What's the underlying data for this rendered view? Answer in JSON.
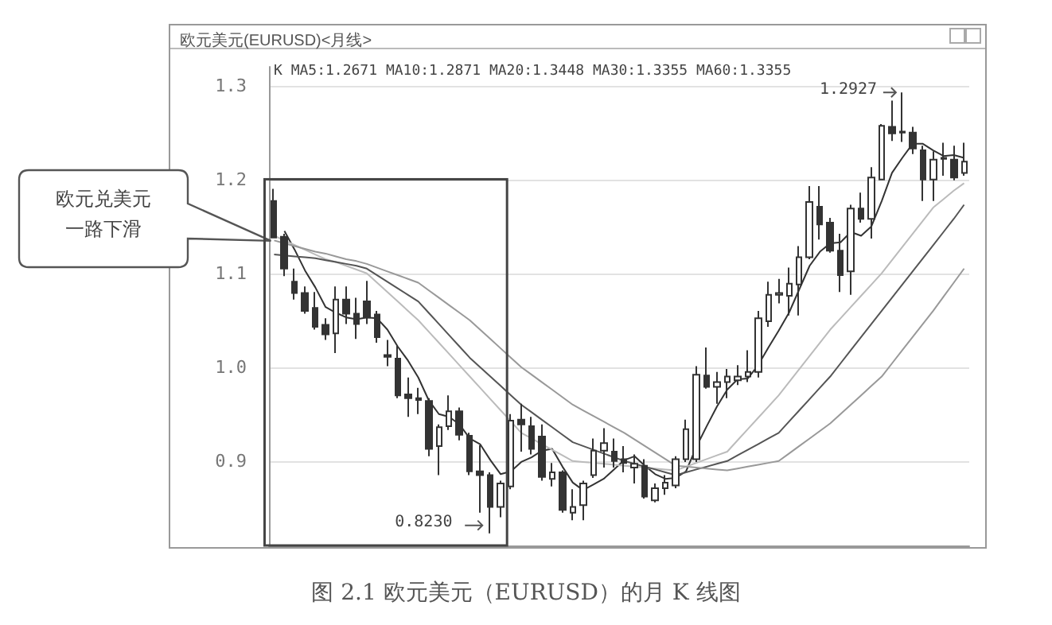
{
  "chart_data": {
    "type": "candlestick",
    "title": "欧元美元(EURUSD)<月线>",
    "categories": [
      null,
      null,
      null,
      null,
      null,
      null,
      null,
      null,
      null,
      null,
      null,
      null,
      null,
      null,
      null,
      null,
      null,
      null,
      null,
      null,
      null,
      null,
      null,
      null,
      null,
      null,
      null,
      null,
      null,
      null,
      null,
      null,
      null,
      null,
      null,
      null,
      null,
      null,
      null,
      null,
      null,
      null,
      null,
      null,
      null,
      null,
      null,
      null,
      null,
      null,
      null,
      null,
      null,
      null,
      null,
      null,
      null,
      null,
      null,
      null,
      null,
      null,
      null,
      null,
      null,
      null,
      null,
      null
    ],
    "color": "#333333",
    "ohlc": [
      [
        1.177,
        1.19,
        1.138,
        1.138
      ],
      [
        1.139,
        1.142,
        1.097,
        1.105
      ],
      [
        1.091,
        1.105,
        1.072,
        1.079
      ],
      [
        1.079,
        1.086,
        1.057,
        1.06
      ],
      [
        1.063,
        1.08,
        1.04,
        1.043
      ],
      [
        1.045,
        1.052,
        1.029,
        1.035
      ],
      [
        1.036,
        1.086,
        1.015,
        1.072
      ],
      [
        1.072,
        1.086,
        1.046,
        1.057
      ],
      [
        1.057,
        1.074,
        1.03,
        1.046
      ],
      [
        1.07,
        1.092,
        1.046,
        1.053
      ],
      [
        1.056,
        1.06,
        1.026,
        1.032
      ],
      [
        1.013,
        1.029,
        1.001,
        1.011
      ],
      [
        1.009,
        1.023,
        0.967,
        0.97
      ],
      [
        0.971,
        0.989,
        0.947,
        0.967
      ],
      [
        0.967,
        0.978,
        0.95,
        0.965
      ],
      [
        0.964,
        0.967,
        0.905,
        0.913
      ],
      [
        0.916,
        0.939,
        0.885,
        0.936
      ],
      [
        0.937,
        0.97,
        0.933,
        0.953
      ],
      [
        0.953,
        0.957,
        0.922,
        0.928
      ],
      [
        0.927,
        0.93,
        0.885,
        0.889
      ],
      [
        0.889,
        0.917,
        0.845,
        0.885
      ],
      [
        0.885,
        0.888,
        0.823,
        0.851
      ],
      [
        0.851,
        0.879,
        0.84,
        0.876
      ],
      [
        0.873,
        0.95,
        0.87,
        0.943
      ],
      [
        0.944,
        0.961,
        0.91,
        0.939
      ],
      [
        0.937,
        0.947,
        0.907,
        0.913
      ],
      [
        0.926,
        0.939,
        0.879,
        0.883
      ],
      [
        0.881,
        0.898,
        0.873,
        0.888
      ],
      [
        0.888,
        0.89,
        0.845,
        0.848
      ],
      [
        0.845,
        0.87,
        0.837,
        0.851
      ],
      [
        0.853,
        0.879,
        0.837,
        0.876
      ],
      [
        0.885,
        0.924,
        0.882,
        0.911
      ],
      [
        0.911,
        0.935,
        0.893,
        0.919
      ],
      [
        0.91,
        0.924,
        0.893,
        0.9
      ],
      [
        0.902,
        0.916,
        0.888,
        0.898
      ],
      [
        0.893,
        0.907,
        0.876,
        0.897
      ],
      [
        0.895,
        0.902,
        0.86,
        0.862
      ],
      [
        0.858,
        0.876,
        0.856,
        0.871
      ],
      [
        0.871,
        0.885,
        0.864,
        0.877
      ],
      [
        0.874,
        0.905,
        0.871,
        0.902
      ],
      [
        0.902,
        0.944,
        0.899,
        0.934
      ],
      [
        0.902,
        1.001,
        0.899,
        0.992
      ],
      [
        0.991,
        1.021,
        0.977,
        0.979
      ],
      [
        0.979,
        0.995,
        0.961,
        0.984
      ],
      [
        0.984,
        0.998,
        0.967,
        0.99
      ],
      [
        0.986,
        1.002,
        0.981,
        0.99
      ],
      [
        0.99,
        1.018,
        0.984,
        0.995
      ],
      [
        0.995,
        1.06,
        0.989,
        1.052
      ],
      [
        1.049,
        1.091,
        1.043,
        1.077
      ],
      [
        1.077,
        1.094,
        1.068,
        1.079
      ],
      [
        1.076,
        1.106,
        1.055,
        1.089
      ],
      [
        1.088,
        1.129,
        1.055,
        1.117
      ],
      [
        1.117,
        1.193,
        1.115,
        1.176
      ],
      [
        1.171,
        1.193,
        1.136,
        1.152
      ],
      [
        1.154,
        1.159,
        1.122,
        1.124
      ],
      [
        1.124,
        1.142,
        1.08,
        1.098
      ],
      [
        1.102,
        1.173,
        1.077,
        1.169
      ],
      [
        1.169,
        1.186,
        1.154,
        1.158
      ],
      [
        1.158,
        1.213,
        1.137,
        1.202
      ],
      [
        1.2,
        1.259,
        1.199,
        1.257
      ],
      [
        1.256,
        1.284,
        1.241,
        1.249
      ],
      [
        1.25,
        1.2927,
        1.24,
        1.251
      ],
      [
        1.25,
        1.256,
        1.227,
        1.233
      ],
      [
        1.231,
        1.236,
        1.177,
        1.2
      ],
      [
        1.2,
        1.23,
        1.177,
        1.221
      ],
      [
        1.223,
        1.239,
        1.204,
        1.222
      ],
      [
        1.221,
        1.236,
        1.199,
        1.202
      ],
      [
        1.207,
        1.239,
        1.204,
        1.219
      ]
    ],
    "series": [
      {
        "type": "line",
        "color": "#333333",
        "values": [
          null,
          1.145,
          1.125,
          1.103,
          1.085,
          1.064,
          1.058,
          1.053,
          1.051,
          1.053,
          1.052,
          1.04,
          1.022,
          1.007,
          0.989,
          0.965,
          0.95,
          0.947,
          0.939,
          0.924,
          0.918,
          0.901,
          0.886,
          0.889,
          0.899,
          0.904,
          0.911,
          0.913,
          0.894,
          0.877,
          0.869,
          0.875,
          0.881,
          0.891,
          0.901,
          0.905,
          0.895,
          0.886,
          0.881,
          0.882,
          0.889,
          0.915,
          0.937,
          0.958,
          0.976,
          0.987,
          0.988,
          1.002,
          1.021,
          1.039,
          1.058,
          1.083,
          1.108,
          1.123,
          1.132,
          1.133,
          1.144,
          1.14,
          1.15,
          1.177,
          1.207,
          1.223,
          1.238,
          1.238,
          1.231,
          1.225,
          1.226,
          1.223
        ]
      },
      {
        "type": "line",
        "color": "#bbbbbb",
        "values": [
          1.14,
          1.135,
          1.13,
          1.125,
          1.12,
          1.115,
          1.112,
          1.108,
          1.104,
          1.1,
          1.09,
          1.08,
          1.07,
          1.06,
          1.05,
          1.038,
          1.026,
          1.014,
          1.002,
          0.99,
          0.978,
          0.966,
          0.954,
          0.942,
          0.93,
          0.924,
          0.918,
          0.912,
          0.906,
          0.9,
          0.899,
          0.898,
          0.897,
          0.896,
          0.895,
          0.894,
          0.893,
          0.892,
          0.891,
          0.89,
          0.894,
          0.898,
          0.902,
          0.906,
          0.91,
          0.922,
          0.934,
          0.946,
          0.958,
          0.97,
          0.984,
          0.998,
          1.012,
          1.026,
          1.04,
          1.052,
          1.064,
          1.076,
          1.088,
          1.1,
          1.114,
          1.128,
          1.142,
          1.156,
          1.17,
          1.179,
          1.188,
          1.196
        ]
      },
      {
        "type": "line",
        "color": "#555555",
        "values": [
          1.12,
          1.119,
          1.118,
          1.117,
          1.116,
          1.114,
          1.112,
          1.11,
          1.108,
          1.105,
          1.098,
          1.091,
          1.084,
          1.077,
          1.07,
          1.058,
          1.046,
          1.034,
          1.022,
          1.01,
          1.0,
          0.99,
          0.98,
          0.97,
          0.96,
          0.952,
          0.944,
          0.936,
          0.928,
          0.92,
          0.916,
          0.912,
          0.908,
          0.904,
          0.9,
          0.897,
          0.894,
          0.891,
          0.888,
          0.885,
          0.888,
          0.891,
          0.894,
          0.897,
          0.9,
          0.906,
          0.912,
          0.918,
          0.924,
          0.93,
          0.942,
          0.954,
          0.966,
          0.978,
          0.99,
          1.004,
          1.018,
          1.032,
          1.046,
          1.06,
          1.074,
          1.088,
          1.102,
          1.116,
          1.13,
          1.144,
          1.158,
          1.173
        ]
      },
      {
        "type": "line",
        "color": "#999999",
        "values": [
          1.135,
          1.132,
          1.129,
          1.126,
          1.123,
          1.121,
          1.118,
          1.115,
          1.113,
          1.11,
          1.106,
          1.102,
          1.098,
          1.094,
          1.09,
          1.082,
          1.074,
          1.066,
          1.058,
          1.05,
          1.04,
          1.03,
          1.02,
          1.01,
          1.0,
          0.992,
          0.984,
          0.976,
          0.968,
          0.96,
          0.954,
          0.948,
          0.942,
          0.936,
          0.93,
          0.923,
          0.916,
          0.909,
          0.902,
          0.895,
          0.894,
          0.893,
          0.892,
          0.891,
          0.89,
          0.892,
          0.894,
          0.896,
          0.898,
          0.9,
          0.908,
          0.916,
          0.924,
          0.932,
          0.94,
          0.95,
          0.96,
          0.97,
          0.98,
          0.99,
          1.004,
          1.018,
          1.032,
          1.046,
          1.06,
          1.075,
          1.09,
          1.105
        ]
      }
    ],
    "ylim": [
      0.81,
      1.32
    ],
    "yticks": [
      0.9,
      {
        "value": 1,
        "label": "1.0"
      },
      1.1,
      1.2,
      1.3
    ],
    "grid": "y",
    "marker": "none",
    "annotations": [
      "K MA5:1.2671 MA10:1.2871 MA20:1.3448 MA30:1.3355 MA60:1.3355",
      "欧元兑美元一路下滑",
      "图 2.1 欧元美元（EURUSD）的月 K 线图",
      "1.2927",
      "0.8230"
    ]
  }
}
